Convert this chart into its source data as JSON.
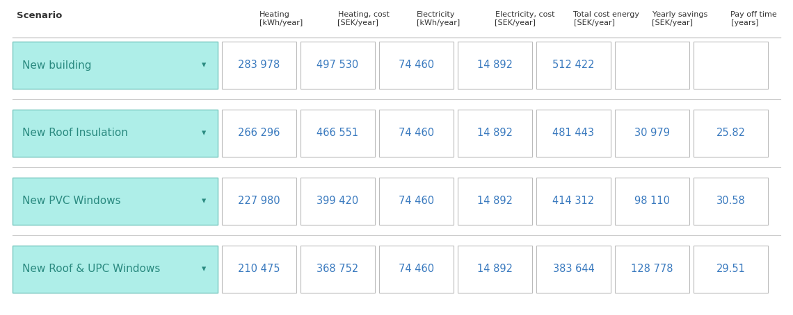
{
  "headers": [
    "Scenario",
    "Heating\n[kWh/year]",
    "Heating, cost\n[SEK/year]",
    "Electricity\n[kWh/year]",
    "Electricity, cost\n[SEK/year]",
    "Total cost energy\n[SEK/year]",
    "Yearly savings\n[SEK/year]",
    "Pay off time\n[years]"
  ],
  "rows": [
    {
      "scenario": "New building",
      "values": [
        "283 978",
        "497 530",
        "74 460",
        "14 892",
        "512 422",
        "",
        ""
      ]
    },
    {
      "scenario": "New Roof Insulation",
      "values": [
        "266 296",
        "466 551",
        "74 460",
        "14 892",
        "481 443",
        "30 979",
        "25.82"
      ]
    },
    {
      "scenario": "New PVC Windows",
      "values": [
        "227 980",
        "399 420",
        "74 460",
        "14 892",
        "414 312",
        "98 110",
        "30.58"
      ]
    },
    {
      "scenario": "New Roof & UPC Windows",
      "values": [
        "210 475",
        "368 752",
        "74 460",
        "14 892",
        "383 644",
        "128 778",
        "29.51"
      ]
    }
  ],
  "scenario_box_color": "#aeeee8",
  "scenario_box_edge": "#78c8c0",
  "data_box_color": "#ffffff",
  "data_box_edge": "#bbbbbb",
  "header_text_color": "#333333",
  "data_text_color": "#3a7abf",
  "scenario_text_color": "#2a8a80",
  "separator_color": "#cccccc",
  "background_color": "#ffffff",
  "fig_width": 11.4,
  "fig_height": 4.54,
  "dpi": 100
}
